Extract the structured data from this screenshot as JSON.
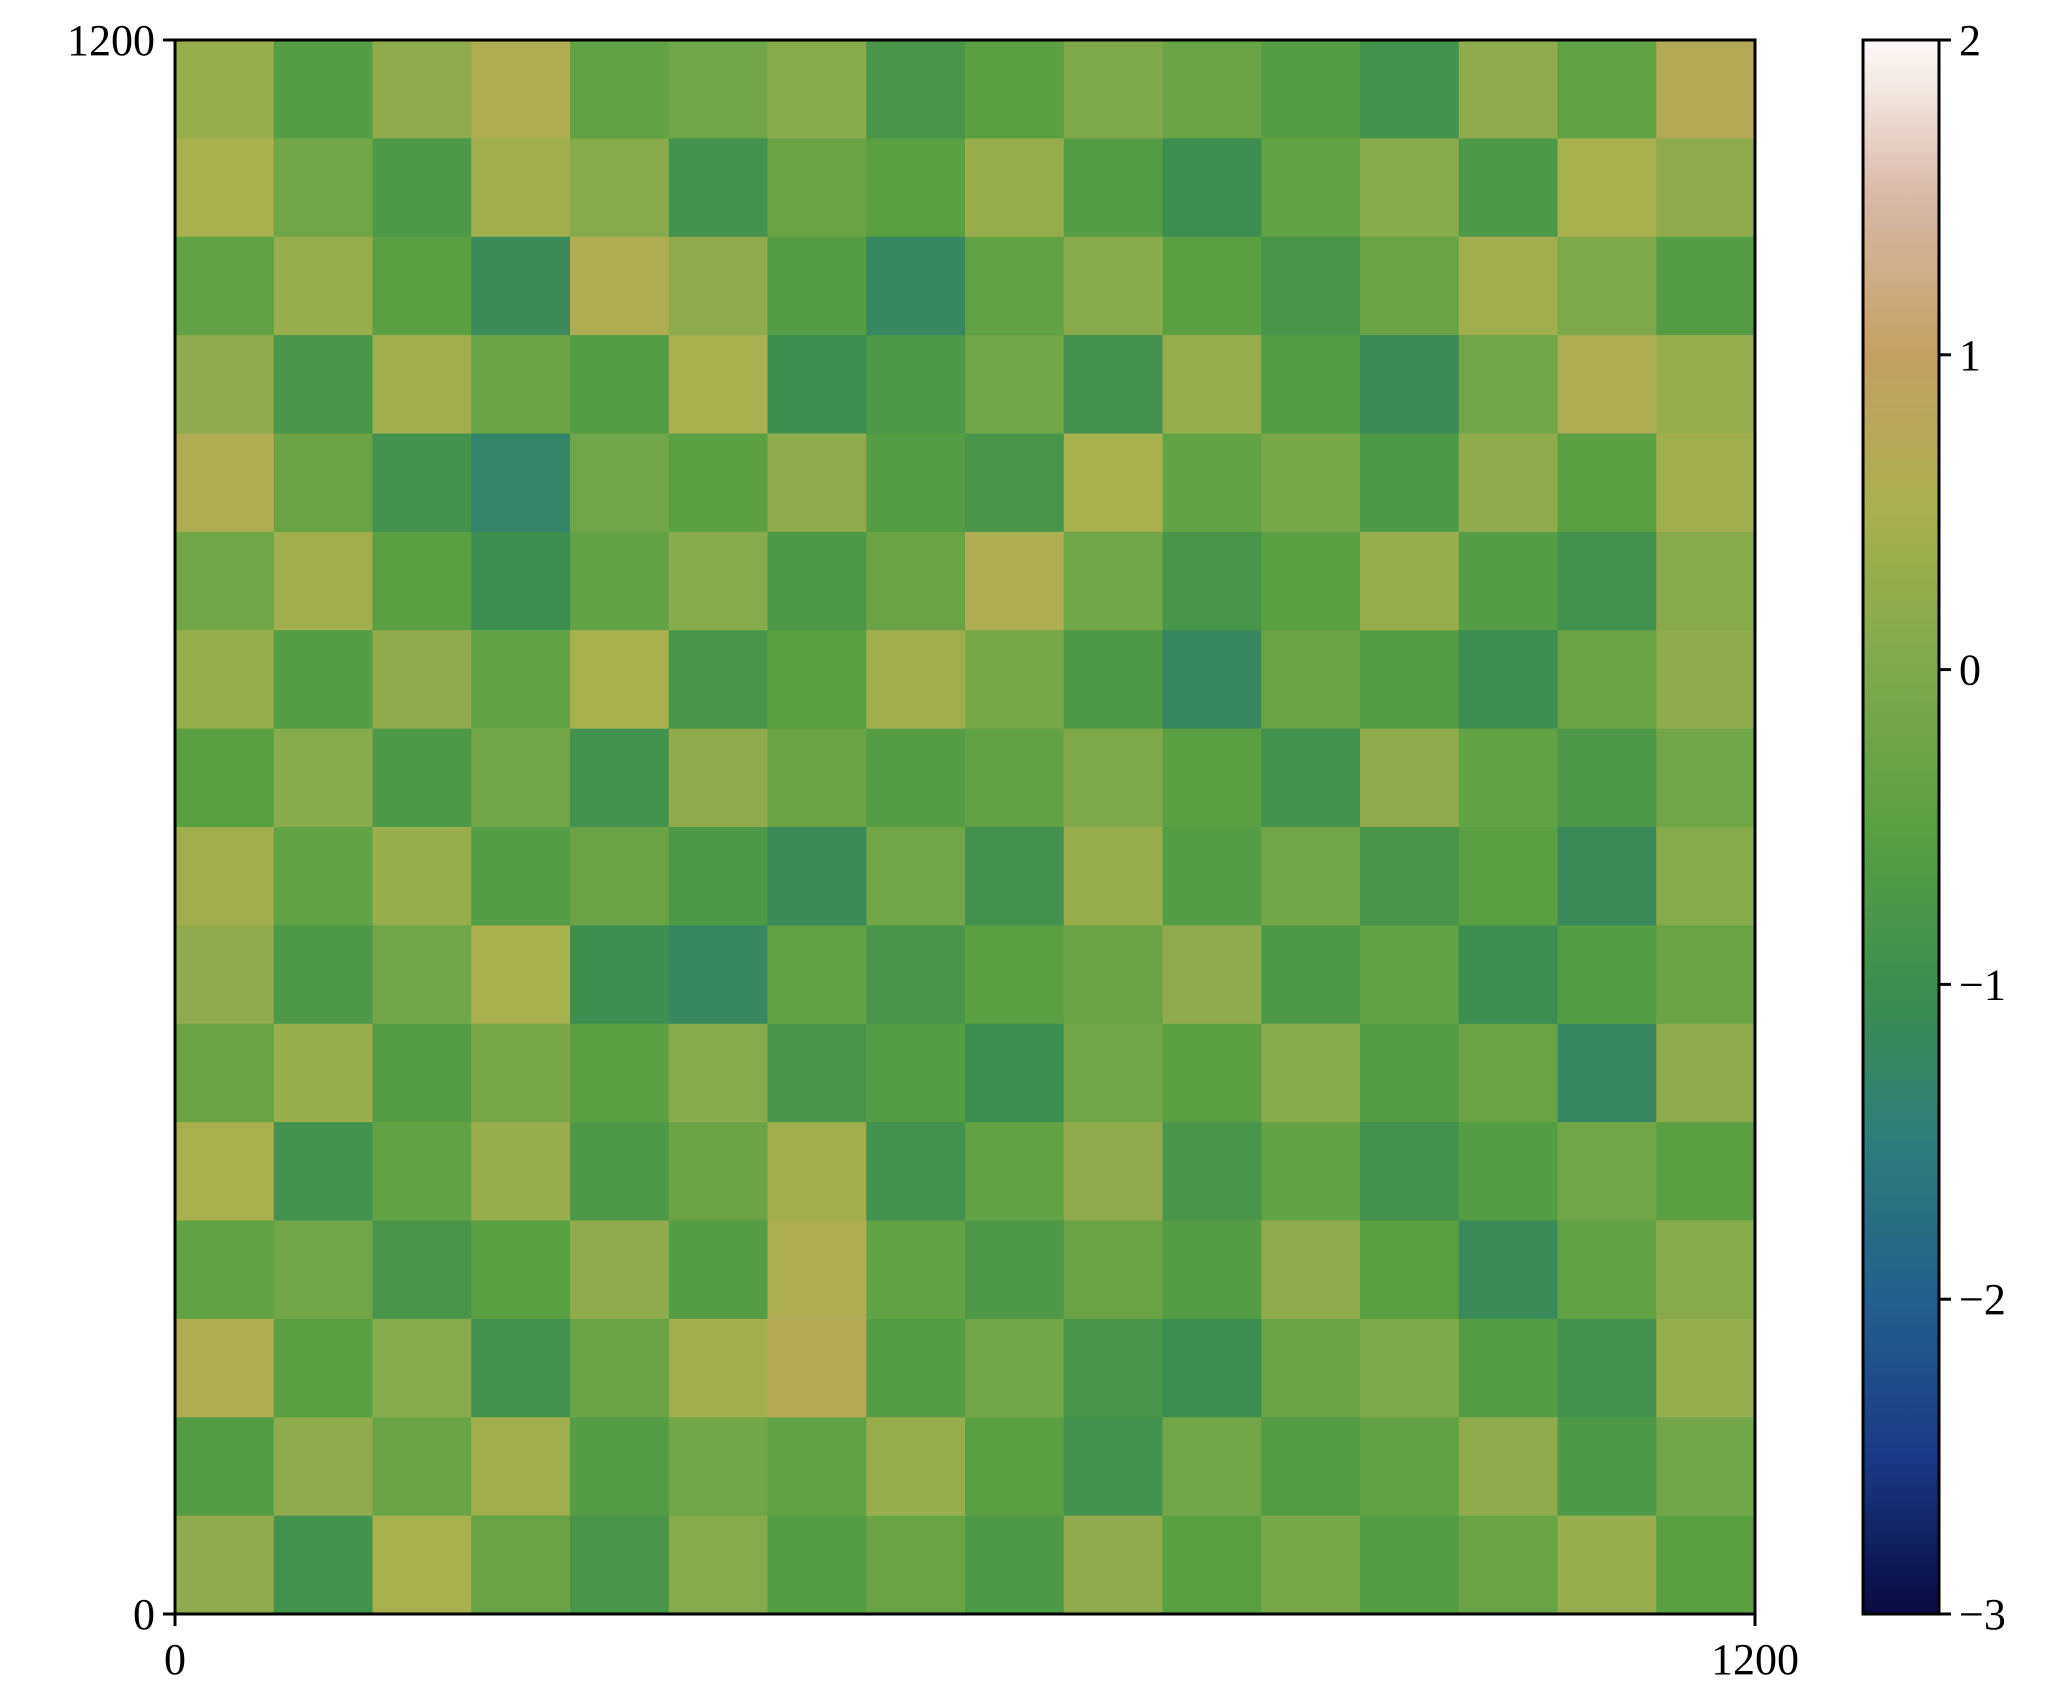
{
  "chart_data": {
    "type": "heatmap",
    "xlim": [
      0,
      1200
    ],
    "ylim": [
      0,
      1200
    ],
    "xticks": [
      0,
      1200
    ],
    "yticks": [
      0,
      1200
    ],
    "z": [
      [
        0.3,
        -0.6,
        0.2,
        0.6,
        -0.4,
        -0.2,
        0.1,
        -0.8,
        -0.5,
        0.0,
        -0.3,
        -0.6,
        -0.9,
        0.2,
        -0.4,
        0.7
      ],
      [
        0.5,
        -0.2,
        -0.7,
        0.4,
        0.1,
        -0.9,
        -0.3,
        -0.5,
        0.3,
        -0.6,
        -1.0,
        -0.4,
        0.1,
        -0.7,
        0.5,
        0.2
      ],
      [
        -0.4,
        0.3,
        -0.5,
        -1.1,
        0.6,
        0.2,
        -0.6,
        -1.2,
        -0.4,
        0.1,
        -0.5,
        -0.8,
        -0.3,
        0.4,
        0.0,
        -0.6
      ],
      [
        0.2,
        -0.8,
        0.4,
        -0.3,
        -0.6,
        0.5,
        -1.0,
        -0.7,
        -0.2,
        -0.9,
        0.3,
        -0.6,
        -1.1,
        -0.2,
        0.6,
        0.3
      ],
      [
        0.6,
        -0.3,
        -0.9,
        -1.3,
        -0.2,
        -0.5,
        0.2,
        -0.6,
        -0.8,
        0.5,
        -0.4,
        -0.1,
        -0.7,
        0.2,
        -0.5,
        0.4
      ],
      [
        -0.2,
        0.4,
        -0.5,
        -1.0,
        -0.4,
        0.1,
        -0.7,
        -0.3,
        0.6,
        -0.2,
        -0.8,
        -0.5,
        0.3,
        -0.6,
        -0.9,
        0.1
      ],
      [
        0.3,
        -0.6,
        0.2,
        -0.4,
        0.5,
        -0.8,
        -0.5,
        0.4,
        -0.1,
        -0.7,
        -1.2,
        -0.3,
        -0.6,
        -1.0,
        -0.3,
        0.2
      ],
      [
        -0.5,
        0.1,
        -0.7,
        -0.2,
        -0.9,
        0.2,
        -0.3,
        -0.6,
        -0.4,
        0.0,
        -0.5,
        -0.9,
        0.2,
        -0.4,
        -0.7,
        -0.2
      ],
      [
        0.4,
        -0.4,
        0.3,
        -0.6,
        -0.3,
        -0.7,
        -1.1,
        -0.2,
        -0.9,
        0.3,
        -0.6,
        -0.2,
        -0.8,
        -0.5,
        -1.1,
        0.1
      ],
      [
        0.2,
        -0.7,
        -0.2,
        0.5,
        -1.0,
        -1.2,
        -0.4,
        -0.8,
        -0.5,
        -0.3,
        0.2,
        -0.7,
        -0.4,
        -1.0,
        -0.6,
        -0.3
      ],
      [
        -0.3,
        0.3,
        -0.6,
        -0.1,
        -0.5,
        0.1,
        -0.8,
        -0.6,
        -1.0,
        -0.2,
        -0.5,
        0.1,
        -0.6,
        -0.3,
        -1.2,
        0.2
      ],
      [
        0.5,
        -0.9,
        -0.4,
        0.3,
        -0.7,
        -0.3,
        0.4,
        -0.9,
        -0.4,
        0.2,
        -0.8,
        -0.4,
        -0.9,
        -0.6,
        -0.2,
        -0.5
      ],
      [
        -0.4,
        -0.2,
        -0.8,
        -0.5,
        0.2,
        -0.6,
        0.6,
        -0.4,
        -0.7,
        -0.3,
        -0.6,
        0.2,
        -0.5,
        -1.1,
        -0.4,
        0.1
      ],
      [
        0.6,
        -0.5,
        0.1,
        -0.9,
        -0.3,
        0.4,
        0.7,
        -0.6,
        -0.2,
        -0.8,
        -1.0,
        -0.3,
        0.0,
        -0.6,
        -0.9,
        0.3
      ],
      [
        -0.6,
        0.2,
        -0.3,
        0.4,
        -0.6,
        -0.2,
        -0.4,
        0.3,
        -0.5,
        -0.9,
        -0.2,
        -0.6,
        -0.4,
        0.2,
        -0.7,
        -0.2
      ],
      [
        0.2,
        -0.9,
        0.5,
        -0.3,
        -0.8,
        0.1,
        -0.6,
        -0.3,
        -0.7,
        0.2,
        -0.5,
        -0.1,
        -0.6,
        -0.3,
        0.3,
        -0.5
      ]
    ],
    "clim": [
      -3,
      2
    ],
    "colormap": [
      "#0a0a40",
      "#1a3a85",
      "#235f8c",
      "#2e7d7a",
      "#3d8f4f",
      "#5aa043",
      "#7fa84b",
      "#a8b050",
      "#c4a062",
      "#d8b8a8",
      "#fdfbfb"
    ],
    "cticks": [
      {
        "value": -3,
        "label": "−3"
      },
      {
        "value": -2,
        "label": "−2"
      },
      {
        "value": -1,
        "label": "−1"
      },
      0,
      1,
      2
    ]
  }
}
